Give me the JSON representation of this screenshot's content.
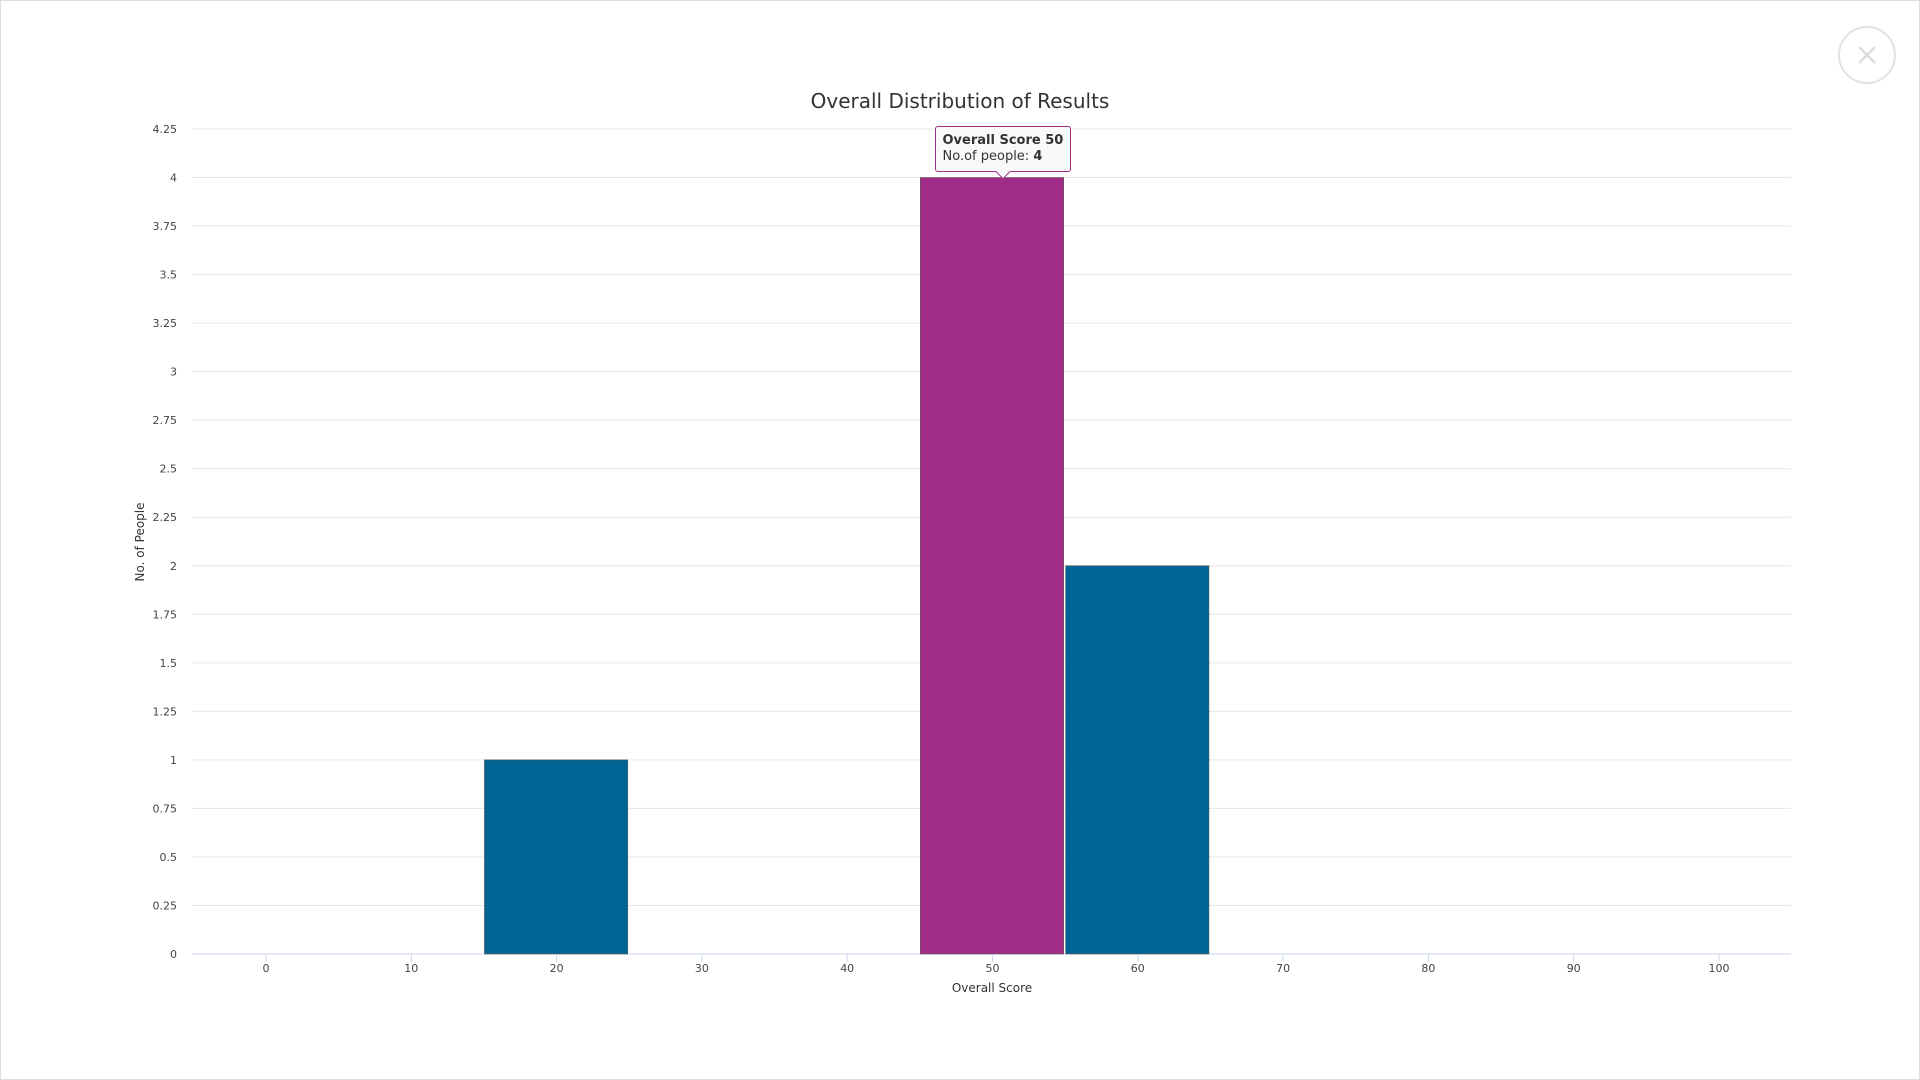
{
  "close_button": {
    "icon": "close-icon"
  },
  "chart_data": {
    "type": "bar",
    "title": "Overall Distribution of Results",
    "xlabel": "Overall Score",
    "ylabel": "No. of People",
    "categories": [
      0,
      10,
      20,
      30,
      40,
      50,
      60,
      70,
      80,
      90,
      100
    ],
    "values": [
      0,
      0,
      1,
      0,
      0,
      4,
      2,
      0,
      0,
      0,
      0
    ],
    "xlim": [
      -5,
      105
    ],
    "ylim": [
      0,
      4.25
    ],
    "x_ticks": [
      "0",
      "10",
      "20",
      "30",
      "40",
      "50",
      "60",
      "70",
      "80",
      "90",
      "100"
    ],
    "y_ticks": [
      "0",
      "0.25",
      "0.5",
      "0.75",
      "1",
      "1.25",
      "1.5",
      "1.75",
      "2",
      "2.25",
      "2.5",
      "2.75",
      "3",
      "3.25",
      "3.5",
      "3.75",
      "4",
      "4.25"
    ],
    "grid": true,
    "colors": {
      "bar": "#006595",
      "highlight": "#a02c87"
    },
    "highlighted_category": 50,
    "tooltip": {
      "title": "Overall Score 50",
      "label": "No.of people: ",
      "value": "4"
    }
  }
}
